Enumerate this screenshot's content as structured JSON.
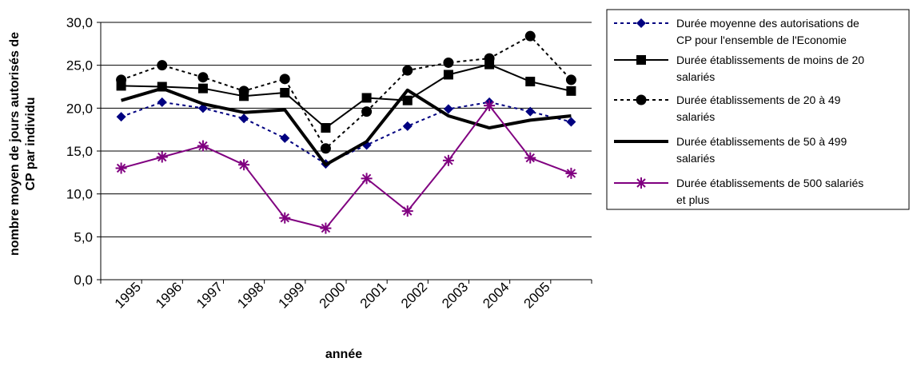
{
  "chart_data": {
    "type": "line",
    "xlabel": "année",
    "ylabel": [
      "nombre moyen de jours autorisés de",
      "CP par individu"
    ],
    "categories": [
      "1995",
      "1996",
      "1997",
      "1998",
      "1999",
      "2000",
      "2001",
      "2002",
      "2003",
      "2004",
      "2005",
      ""
    ],
    "ylim": [
      0,
      30
    ],
    "yticks": [
      "0,0",
      "5,0",
      "10,0",
      "15,0",
      "20,0",
      "25,0",
      "30,0"
    ],
    "grid": "horizontal",
    "legend_position": "right",
    "series": [
      {
        "name": [
          "Durée moyenne des autorisations de",
          "CP pour l'ensemble de l'Economie"
        ],
        "values": [
          19.0,
          20.7,
          20.0,
          18.8,
          16.5,
          13.5,
          15.7,
          17.9,
          19.9,
          20.7,
          19.6,
          18.4
        ],
        "color": "#000080",
        "line": "dotted",
        "width": 2,
        "marker": "diamond",
        "marker_color": "#000080"
      },
      {
        "name": [
          "Durée établissements de moins de 20",
          "salariés"
        ],
        "values": [
          22.6,
          22.5,
          22.3,
          21.4,
          21.8,
          17.7,
          21.2,
          20.9,
          23.9,
          25.1,
          23.1,
          22.0
        ],
        "color": "#000000",
        "line": "solid",
        "width": 2,
        "marker": "square",
        "marker_color": "#000000"
      },
      {
        "name": [
          "Durée établissements de 20 à 49",
          "salariés"
        ],
        "values": [
          23.3,
          25.0,
          23.6,
          22.0,
          23.4,
          15.3,
          19.6,
          24.4,
          25.3,
          25.8,
          28.4,
          23.3
        ],
        "color": "#000000",
        "line": "dotted",
        "width": 2,
        "marker": "circle",
        "marker_color": "#000000"
      },
      {
        "name": [
          "Durée établissements de 50 à 499",
          "salariés"
        ],
        "values": [
          20.9,
          22.3,
          20.5,
          19.5,
          19.8,
          13.4,
          16.1,
          22.1,
          19.1,
          17.7,
          18.6,
          19.1
        ],
        "color": "#000000",
        "line": "solid",
        "width": 4,
        "marker": "none",
        "marker_color": "#000000"
      },
      {
        "name": [
          "Durée établissements de 500 salariés",
          "et plus"
        ],
        "values": [
          13.0,
          14.3,
          15.6,
          13.4,
          7.2,
          6.0,
          11.8,
          8.0,
          13.9,
          20.3,
          14.2,
          12.4
        ],
        "color": "#800080",
        "line": "solid",
        "width": 2,
        "marker": "asterisk",
        "marker_color": "#800080"
      }
    ]
  }
}
